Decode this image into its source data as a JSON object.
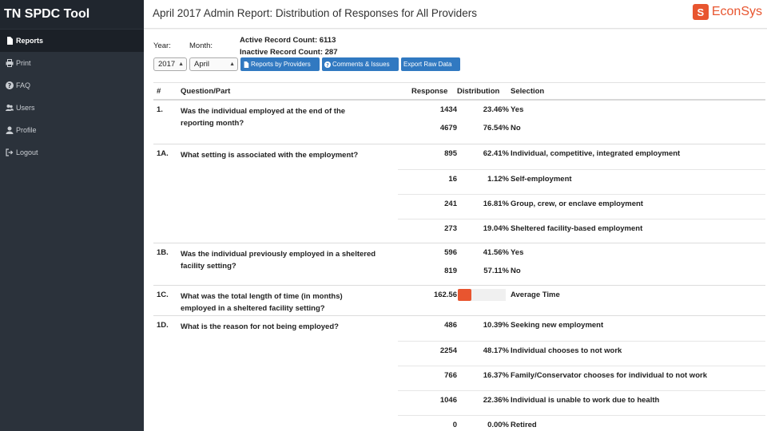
{
  "sidebar": {
    "brand": "TN SPDC Tool",
    "items": [
      {
        "label": "Reports"
      },
      {
        "label": "Print"
      },
      {
        "label": "FAQ"
      },
      {
        "label": "Users"
      },
      {
        "label": "Profile"
      },
      {
        "label": "Logout"
      }
    ]
  },
  "header": {
    "title": "April 2017 Admin Report: Distribution of Responses for All Providers",
    "logo_text": "EconSys",
    "accent": "#e8552f"
  },
  "filters": {
    "year_label": "Year:",
    "month_label": "Month:",
    "year_value": "2017",
    "month_value": "April",
    "active_count": "Active Record Count: 6113",
    "inactive_count": "Inactive Record Count: 287"
  },
  "actions": {
    "by_providers": "Reports by Providers",
    "comments": "Comments & Issues",
    "export": "Export Raw Data"
  },
  "table": {
    "headers": {
      "num": "#",
      "question": "Question/Part",
      "response": "Response",
      "distribution": "Distribution",
      "selection": "Selection"
    },
    "groups": [
      {
        "num": "1.",
        "question": "Was the individual employed at the end of the reporting month?",
        "rows": [
          {
            "response": "1434",
            "pct": "23.46%",
            "selection": "Yes"
          },
          {
            "response": "4679",
            "pct": "76.54%",
            "selection": "No"
          }
        ]
      },
      {
        "num": "1A.",
        "question": "What setting is associated with the employment?",
        "rows": [
          {
            "response": "895",
            "pct": "62.41%",
            "selection": "Individual, competitive, integrated employment"
          },
          {
            "response": "16",
            "pct": "1.12%",
            "selection": "Self-employment"
          },
          {
            "response": "241",
            "pct": "16.81%",
            "selection": "Group, crew, or enclave employment"
          },
          {
            "response": "273",
            "pct": "19.04%",
            "selection": "Sheltered facility-based employment"
          }
        ]
      },
      {
        "num": "1B.",
        "question": "Was the individual previously employed in a sheltered facility setting?",
        "rows": [
          {
            "response": "596",
            "pct": "41.56%",
            "selection": "Yes"
          },
          {
            "response": "819",
            "pct": "57.11%",
            "selection": "No"
          }
        ]
      },
      {
        "num": "1C.",
        "question": "What was the total length of time (in months) employed in a sheltered facility setting?",
        "rows": [
          {
            "response": "162.56",
            "bar_fraction": 0.28,
            "selection": "Average Time"
          }
        ]
      },
      {
        "num": "1D.",
        "question": "What is the reason for not being employed?",
        "rows": [
          {
            "response": "486",
            "pct": "10.39%",
            "selection": "Seeking new employment"
          },
          {
            "response": "2254",
            "pct": "48.17%",
            "selection": "Individual chooses to not work"
          },
          {
            "response": "766",
            "pct": "16.37%",
            "selection": "Family/Conservator chooses for individual to not work"
          },
          {
            "response": "1046",
            "pct": "22.36%",
            "selection": "Individual is unable to work due to health"
          },
          {
            "response": "0",
            "pct": "0.00%",
            "selection": "Retired"
          }
        ]
      }
    ]
  }
}
